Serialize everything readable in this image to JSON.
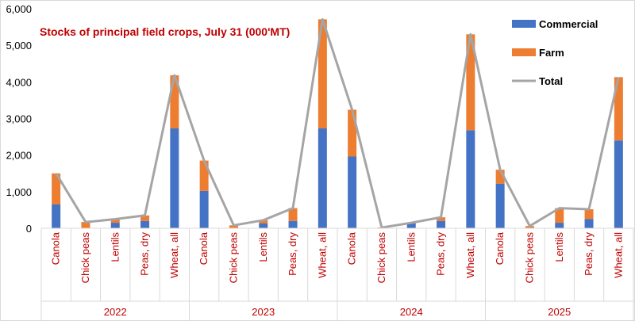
{
  "chart_data": {
    "type": "bar",
    "stacked": true,
    "title": "Stocks of principal field crops, July 31 (000'MT)",
    "groups": [
      {
        "label": "2022",
        "categories": [
          "Canola",
          "Chick peas",
          "Lentils",
          "Peas, dry",
          "Wheat, all"
        ]
      },
      {
        "label": "2023",
        "categories": [
          "Canola",
          "Chick peas",
          "Lentils",
          "Peas, dry",
          "Wheat, all"
        ]
      },
      {
        "label": "2024",
        "categories": [
          "Canola",
          "Chick peas",
          "Lentils",
          "Peas, dry",
          "Wheat, all"
        ]
      },
      {
        "label": "2025",
        "categories": [
          "Canola",
          "Chick peas",
          "Lentils",
          "Peas, dry",
          "Wheat, all"
        ]
      }
    ],
    "series": [
      {
        "name": "Commercial",
        "color": "#4472c4",
        "kind": "bar",
        "values": [
          650,
          0,
          150,
          200,
          2730,
          1020,
          0,
          130,
          200,
          2730,
          1960,
          0,
          130,
          200,
          2680,
          1220,
          0,
          150,
          250,
          2400
        ]
      },
      {
        "name": "Farm",
        "color": "#ed7d31",
        "kind": "bar",
        "values": [
          850,
          170,
          100,
          150,
          1450,
          830,
          80,
          90,
          350,
          2980,
          1280,
          20,
          20,
          100,
          2620,
          380,
          60,
          400,
          270,
          1730
        ]
      },
      {
        "name": "Total",
        "color": "#a5a5a5",
        "kind": "line",
        "values": [
          1500,
          170,
          250,
          350,
          4180,
          1850,
          80,
          220,
          550,
          5710,
          3240,
          20,
          150,
          300,
          5300,
          1600,
          60,
          550,
          520,
          4130
        ]
      }
    ],
    "y_ticks": [
      "0",
      "1,000",
      "2,000",
      "3,000",
      "4,000",
      "5,000",
      "6,000"
    ],
    "ylim": [
      0,
      6000
    ],
    "grid": false,
    "legend_position": "top-right"
  }
}
